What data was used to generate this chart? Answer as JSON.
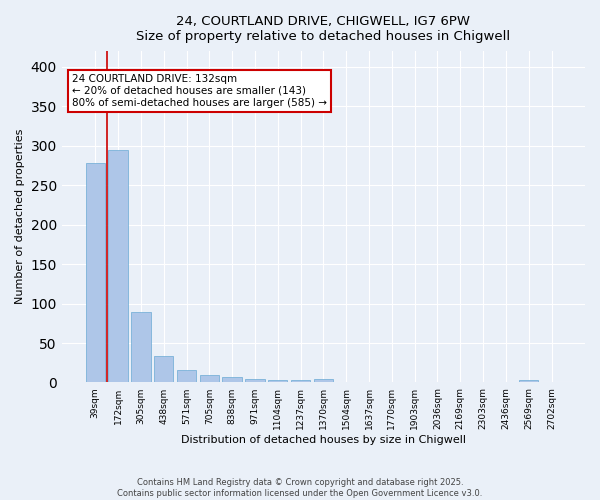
{
  "title_line1": "24, COURTLAND DRIVE, CHIGWELL, IG7 6PW",
  "title_line2": "Size of property relative to detached houses in Chigwell",
  "xlabel": "Distribution of detached houses by size in Chigwell",
  "ylabel": "Number of detached properties",
  "categories": [
    "39sqm",
    "172sqm",
    "305sqm",
    "438sqm",
    "571sqm",
    "705sqm",
    "838sqm",
    "971sqm",
    "1104sqm",
    "1237sqm",
    "1370sqm",
    "1504sqm",
    "1637sqm",
    "1770sqm",
    "1903sqm",
    "2036sqm",
    "2169sqm",
    "2303sqm",
    "2436sqm",
    "2569sqm",
    "2702sqm"
  ],
  "values": [
    278,
    295,
    89,
    33,
    16,
    9,
    7,
    4,
    3,
    3,
    4,
    0,
    0,
    0,
    0,
    0,
    0,
    0,
    0,
    3,
    0
  ],
  "bar_color": "#aec6e8",
  "bar_edge_color": "#6aaad4",
  "vline_color": "#cc0000",
  "annotation_text": "24 COURTLAND DRIVE: 132sqm\n← 20% of detached houses are smaller (143)\n80% of semi-detached houses are larger (585) →",
  "annotation_box_color": "#ffffff",
  "annotation_box_edge_color": "#cc0000",
  "ylim": [
    0,
    420
  ],
  "yticks": [
    0,
    50,
    100,
    150,
    200,
    250,
    300,
    350,
    400
  ],
  "bg_color": "#eaf0f8",
  "grid_color": "#ffffff",
  "footer": "Contains HM Land Registry data © Crown copyright and database right 2025.\nContains public sector information licensed under the Open Government Licence v3.0."
}
